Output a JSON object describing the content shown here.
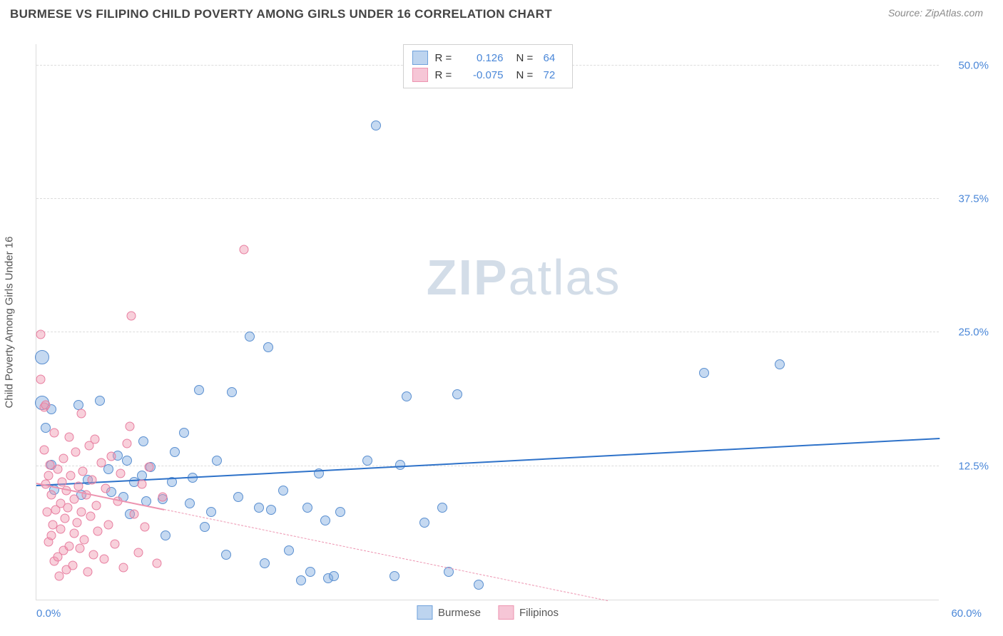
{
  "header": {
    "title": "BURMESE VS FILIPINO CHILD POVERTY AMONG GIRLS UNDER 16 CORRELATION CHART",
    "source_prefix": "Source: ",
    "source": "ZipAtlas.com"
  },
  "chart": {
    "type": "scatter",
    "ylabel": "Child Poverty Among Girls Under 16",
    "xlim": [
      0,
      60
    ],
    "ylim": [
      0,
      52
    ],
    "x_ticks": [
      {
        "pos": 0,
        "label": "0.0%"
      },
      {
        "pos": 60,
        "label": "60.0%"
      }
    ],
    "y_ticks": [
      {
        "pos": 12.5,
        "label": "12.5%"
      },
      {
        "pos": 25.0,
        "label": "25.0%"
      },
      {
        "pos": 37.5,
        "label": "37.5%"
      },
      {
        "pos": 50.0,
        "label": "50.0%"
      }
    ],
    "background_color": "#ffffff",
    "grid_color": "#dcdcdc",
    "series": [
      {
        "name": "Burmese",
        "color_fill": "rgba(126,170,224,0.45)",
        "color_stroke": "#5a8fd0",
        "swatch_fill": "#bdd4ef",
        "swatch_stroke": "#6fa1db",
        "r": "0.126",
        "n": "64",
        "trend": {
          "x1": 0,
          "y1": 10.8,
          "x2": 60,
          "y2": 15.2,
          "color": "#2e72c9",
          "width": 2.5,
          "dash": "solid"
        },
        "marker_size_default": 14,
        "points": [
          {
            "x": 0.4,
            "y": 22.7,
            "s": 20
          },
          {
            "x": 0.4,
            "y": 18.4,
            "s": 20
          },
          {
            "x": 0.6,
            "y": 16.1
          },
          {
            "x": 1.0,
            "y": 17.8
          },
          {
            "x": 1.0,
            "y": 12.6
          },
          {
            "x": 1.2,
            "y": 10.3
          },
          {
            "x": 2.8,
            "y": 18.2
          },
          {
            "x": 3.0,
            "y": 9.8
          },
          {
            "x": 3.4,
            "y": 11.2
          },
          {
            "x": 4.2,
            "y": 18.6
          },
          {
            "x": 4.8,
            "y": 12.2
          },
          {
            "x": 5.0,
            "y": 10.1
          },
          {
            "x": 5.4,
            "y": 13.5
          },
          {
            "x": 5.8,
            "y": 9.6
          },
          {
            "x": 6.0,
            "y": 13.0
          },
          {
            "x": 6.2,
            "y": 8.0
          },
          {
            "x": 6.5,
            "y": 11.0
          },
          {
            "x": 7.0,
            "y": 11.6
          },
          {
            "x": 7.1,
            "y": 14.8
          },
          {
            "x": 7.3,
            "y": 9.2
          },
          {
            "x": 7.6,
            "y": 12.4
          },
          {
            "x": 8.4,
            "y": 9.4
          },
          {
            "x": 8.6,
            "y": 6.0
          },
          {
            "x": 9.0,
            "y": 11.0
          },
          {
            "x": 9.2,
            "y": 13.8
          },
          {
            "x": 9.8,
            "y": 15.6
          },
          {
            "x": 10.2,
            "y": 9.0
          },
          {
            "x": 10.4,
            "y": 11.4
          },
          {
            "x": 10.8,
            "y": 19.6
          },
          {
            "x": 11.2,
            "y": 6.8
          },
          {
            "x": 11.6,
            "y": 8.2
          },
          {
            "x": 12.0,
            "y": 13.0
          },
          {
            "x": 12.6,
            "y": 4.2
          },
          {
            "x": 13.0,
            "y": 19.4
          },
          {
            "x": 13.4,
            "y": 9.6
          },
          {
            "x": 14.2,
            "y": 24.6
          },
          {
            "x": 14.8,
            "y": 8.6
          },
          {
            "x": 15.2,
            "y": 3.4
          },
          {
            "x": 15.4,
            "y": 23.6
          },
          {
            "x": 15.6,
            "y": 8.4
          },
          {
            "x": 16.4,
            "y": 10.2
          },
          {
            "x": 16.8,
            "y": 4.6
          },
          {
            "x": 17.6,
            "y": 1.8
          },
          {
            "x": 18.0,
            "y": 8.6
          },
          {
            "x": 18.2,
            "y": 2.6
          },
          {
            "x": 18.8,
            "y": 11.8
          },
          {
            "x": 19.2,
            "y": 7.4
          },
          {
            "x": 19.4,
            "y": 2.0
          },
          {
            "x": 19.8,
            "y": 2.2
          },
          {
            "x": 20.2,
            "y": 8.2
          },
          {
            "x": 22.0,
            "y": 13.0
          },
          {
            "x": 22.6,
            "y": 44.4
          },
          {
            "x": 23.8,
            "y": 2.2
          },
          {
            "x": 24.2,
            "y": 12.6
          },
          {
            "x": 24.6,
            "y": 19.0
          },
          {
            "x": 25.8,
            "y": 7.2
          },
          {
            "x": 27.0,
            "y": 8.6
          },
          {
            "x": 27.4,
            "y": 2.6
          },
          {
            "x": 28.0,
            "y": 19.2
          },
          {
            "x": 29.4,
            "y": 1.4
          },
          {
            "x": 44.4,
            "y": 21.2
          },
          {
            "x": 49.4,
            "y": 22.0
          }
        ]
      },
      {
        "name": "Filipinos",
        "color_fill": "rgba(240,150,175,0.45)",
        "color_stroke": "#e87ea0",
        "swatch_fill": "#f6c6d6",
        "swatch_stroke": "#ed94b0",
        "r": "-0.075",
        "n": "72",
        "trend": {
          "x1": 0,
          "y1": 11.0,
          "x2": 38,
          "y2": 0,
          "color": "#ed94b0",
          "width": 1,
          "dash": "dashed",
          "solid_until": 8.5
        },
        "marker_size_default": 13,
        "points": [
          {
            "x": 0.3,
            "y": 20.6
          },
          {
            "x": 0.3,
            "y": 24.8
          },
          {
            "x": 0.5,
            "y": 18.0
          },
          {
            "x": 0.5,
            "y": 14.0
          },
          {
            "x": 0.6,
            "y": 10.8
          },
          {
            "x": 0.6,
            "y": 18.2
          },
          {
            "x": 0.7,
            "y": 8.2
          },
          {
            "x": 0.8,
            "y": 11.6
          },
          {
            "x": 0.8,
            "y": 5.4
          },
          {
            "x": 0.9,
            "y": 12.6
          },
          {
            "x": 1.0,
            "y": 6.0
          },
          {
            "x": 1.0,
            "y": 9.8
          },
          {
            "x": 1.1,
            "y": 7.0
          },
          {
            "x": 1.2,
            "y": 15.6
          },
          {
            "x": 1.2,
            "y": 3.6
          },
          {
            "x": 1.3,
            "y": 8.4
          },
          {
            "x": 1.4,
            "y": 12.2
          },
          {
            "x": 1.4,
            "y": 4.0
          },
          {
            "x": 1.5,
            "y": 2.2
          },
          {
            "x": 1.6,
            "y": 9.0
          },
          {
            "x": 1.6,
            "y": 6.6
          },
          {
            "x": 1.7,
            "y": 11.0
          },
          {
            "x": 1.8,
            "y": 13.2
          },
          {
            "x": 1.8,
            "y": 4.6
          },
          {
            "x": 1.9,
            "y": 7.6
          },
          {
            "x": 2.0,
            "y": 10.2
          },
          {
            "x": 2.0,
            "y": 2.8
          },
          {
            "x": 2.1,
            "y": 8.6
          },
          {
            "x": 2.2,
            "y": 15.2
          },
          {
            "x": 2.2,
            "y": 5.0
          },
          {
            "x": 2.3,
            "y": 11.6
          },
          {
            "x": 2.4,
            "y": 3.2
          },
          {
            "x": 2.5,
            "y": 9.4
          },
          {
            "x": 2.5,
            "y": 6.2
          },
          {
            "x": 2.6,
            "y": 13.8
          },
          {
            "x": 2.7,
            "y": 7.2
          },
          {
            "x": 2.8,
            "y": 10.6
          },
          {
            "x": 2.9,
            "y": 4.8
          },
          {
            "x": 3.0,
            "y": 17.4
          },
          {
            "x": 3.0,
            "y": 8.2
          },
          {
            "x": 3.1,
            "y": 12.0
          },
          {
            "x": 3.2,
            "y": 5.6
          },
          {
            "x": 3.3,
            "y": 9.8
          },
          {
            "x": 3.4,
            "y": 2.6
          },
          {
            "x": 3.5,
            "y": 14.4
          },
          {
            "x": 3.6,
            "y": 7.8
          },
          {
            "x": 3.7,
            "y": 11.2
          },
          {
            "x": 3.8,
            "y": 4.2
          },
          {
            "x": 3.9,
            "y": 15.0
          },
          {
            "x": 4.0,
            "y": 8.8
          },
          {
            "x": 4.1,
            "y": 6.4
          },
          {
            "x": 4.3,
            "y": 12.8
          },
          {
            "x": 4.5,
            "y": 3.8
          },
          {
            "x": 4.6,
            "y": 10.4
          },
          {
            "x": 4.8,
            "y": 7.0
          },
          {
            "x": 5.0,
            "y": 13.4
          },
          {
            "x": 5.2,
            "y": 5.2
          },
          {
            "x": 5.4,
            "y": 9.2
          },
          {
            "x": 5.6,
            "y": 11.8
          },
          {
            "x": 5.8,
            "y": 3.0
          },
          {
            "x": 6.0,
            "y": 14.6
          },
          {
            "x": 6.2,
            "y": 16.2
          },
          {
            "x": 6.3,
            "y": 26.6
          },
          {
            "x": 6.5,
            "y": 8.0
          },
          {
            "x": 6.8,
            "y": 4.4
          },
          {
            "x": 7.0,
            "y": 10.8
          },
          {
            "x": 7.2,
            "y": 6.8
          },
          {
            "x": 7.5,
            "y": 12.4
          },
          {
            "x": 8.0,
            "y": 3.4
          },
          {
            "x": 8.4,
            "y": 9.6
          },
          {
            "x": 13.8,
            "y": 32.8
          }
        ]
      }
    ],
    "watermark": {
      "text_bold": "ZIP",
      "text_rest": "atlas",
      "color": "#d3dde8"
    }
  }
}
